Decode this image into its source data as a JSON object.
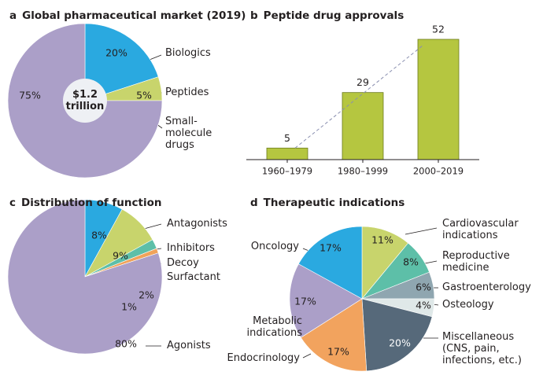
{
  "chart_data": [
    {
      "type": "pie",
      "panel": "a",
      "title": "Global pharmaceutical market (2019)",
      "center_label": "$1.2\ntrillion",
      "categories": [
        "Biologics",
        "Peptides",
        "Small-\nmolecule\ndrugs"
      ],
      "values": [
        20,
        5,
        75
      ],
      "value_labels": [
        "20%",
        "5%",
        "75%"
      ],
      "colors": [
        "#2aa9e0",
        "#c8d46c",
        "#ab9fc8"
      ]
    },
    {
      "type": "bar",
      "panel": "b",
      "title": "Peptide drug approvals",
      "categories": [
        "1960–1979",
        "1980–1999",
        "2000–2019"
      ],
      "values": [
        5,
        29,
        52
      ],
      "color": "#b5c640"
    },
    {
      "type": "pie",
      "panel": "c",
      "title": "Distribution of function",
      "categories": [
        "Antagonists",
        "Inhibitors",
        "Decoy",
        "Surfactant",
        "Agonists"
      ],
      "values": [
        8,
        9,
        2,
        1,
        80
      ],
      "value_labels": [
        "8%",
        "9%",
        "2%",
        "1%",
        "80%"
      ],
      "colors": [
        "#2aa9e0",
        "#c8d46c",
        "#5dbfa8",
        "#f0a35a",
        "#ab9fc8"
      ]
    },
    {
      "type": "pie",
      "panel": "d",
      "title": "Therapeutic indications",
      "categories": [
        "Cardiovascular\nindications",
        "Reproductive\nmedicine",
        "Gastroenterology",
        "Osteology",
        "Miscellaneous\n(CNS, pain,\ninfections, etc.)",
        "Endocrinology",
        "Metabolic\nindications",
        "Oncology"
      ],
      "values": [
        11,
        8,
        6,
        4,
        20,
        17,
        17,
        17
      ],
      "value_labels": [
        "11%",
        "8%",
        "6%",
        "4%",
        "20%",
        "17%",
        "17%",
        "17%"
      ],
      "colors": [
        "#c8d46c",
        "#5dbfa8",
        "#8fa6b0",
        "#dfe8e8",
        "#56697a",
        "#f2a35e",
        "#ab9fc8",
        "#2aa9e0"
      ]
    }
  ]
}
